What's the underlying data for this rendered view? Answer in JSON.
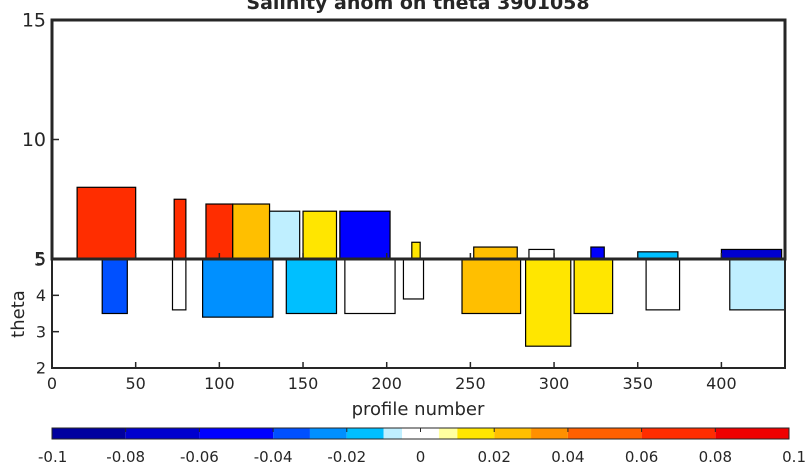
{
  "chart_data": [
    {
      "type": "heatmap",
      "panel": "upper",
      "title": "Salinity anom on theta    3901058",
      "xlim": [
        0,
        438
      ],
      "ylim": [
        5,
        15
      ],
      "yticks": [
        5,
        10,
        15
      ],
      "ytick_labels": [
        "5",
        "10",
        "15"
      ],
      "grid": false,
      "columns": [
        {
          "x": [
            15,
            50
          ],
          "theta": [
            5,
            8.0
          ],
          "dominant_anom": 0.07
        },
        {
          "x": [
            73,
            80
          ],
          "theta": [
            5,
            7.5
          ],
          "dominant_anom": 0.065
        },
        {
          "x": [
            92,
            108
          ],
          "theta": [
            5,
            7.3
          ],
          "dominant_anom": 0.06
        },
        {
          "x": [
            108,
            130
          ],
          "theta": [
            5,
            7.3
          ],
          "dominant_anom": 0.02
        },
        {
          "x": [
            130,
            148
          ],
          "theta": [
            5,
            7.0
          ],
          "dominant_anom": -0.01
        },
        {
          "x": [
            150,
            170
          ],
          "theta": [
            5,
            7.0
          ],
          "dominant_anom": 0.01
        },
        {
          "x": [
            172,
            202
          ],
          "theta": [
            5,
            7.0
          ],
          "dominant_anom": -0.05
        },
        {
          "x": [
            215,
            220
          ],
          "theta": [
            5,
            5.7
          ],
          "dominant_anom": 0.01
        },
        {
          "x": [
            252,
            278
          ],
          "theta": [
            5,
            5.5
          ],
          "dominant_anom": 0.02
        },
        {
          "x": [
            285,
            300
          ],
          "theta": [
            5,
            5.4
          ],
          "dominant_anom": 0.0
        },
        {
          "x": [
            322,
            330
          ],
          "theta": [
            5,
            5.5
          ],
          "dominant_anom": -0.06
        },
        {
          "x": [
            350,
            374
          ],
          "theta": [
            5,
            5.3
          ],
          "dominant_anom": -0.02
        },
        {
          "x": [
            400,
            436
          ],
          "theta": [
            5,
            5.4
          ],
          "dominant_anom": -0.07
        }
      ]
    },
    {
      "type": "heatmap",
      "panel": "lower",
      "xlabel": "profile number",
      "ylabel": "theta",
      "xlim": [
        0,
        438
      ],
      "ylim": [
        2,
        5
      ],
      "xticks": [
        0,
        50,
        100,
        150,
        200,
        250,
        300,
        350,
        400
      ],
      "xtick_labels": [
        "0",
        "50",
        "100",
        "150",
        "200",
        "250",
        "300",
        "350",
        "400"
      ],
      "yticks": [
        2,
        3,
        4,
        5
      ],
      "ytick_labels": [
        "2",
        "3",
        "4",
        "5"
      ],
      "grid": false,
      "columns": [
        {
          "x": [
            30,
            45
          ],
          "theta": [
            3.5,
            5
          ],
          "dominant_anom": -0.04
        },
        {
          "x": [
            72,
            80
          ],
          "theta": [
            3.6,
            5
          ],
          "dominant_anom": 0.0
        },
        {
          "x": [
            90,
            132
          ],
          "theta": [
            3.4,
            5
          ],
          "dominant_anom": -0.03
        },
        {
          "x": [
            140,
            170
          ],
          "theta": [
            3.5,
            5
          ],
          "dominant_anom": -0.02
        },
        {
          "x": [
            175,
            205
          ],
          "theta": [
            3.5,
            5
          ],
          "dominant_anom": 0.0
        },
        {
          "x": [
            210,
            222
          ],
          "theta": [
            3.9,
            5
          ],
          "dominant_anom": 0.0
        },
        {
          "x": [
            245,
            280
          ],
          "theta": [
            3.5,
            5
          ],
          "dominant_anom": 0.02
        },
        {
          "x": [
            283,
            310
          ],
          "theta": [
            2.6,
            5
          ],
          "dominant_anom": 0.015
        },
        {
          "x": [
            312,
            335
          ],
          "theta": [
            3.5,
            5
          ],
          "dominant_anom": 0.01
        },
        {
          "x": [
            355,
            375
          ],
          "theta": [
            3.6,
            5
          ],
          "dominant_anom": 0.0
        },
        {
          "x": [
            405,
            438
          ],
          "theta": [
            3.6,
            5
          ],
          "dominant_anom": -0.01
        }
      ]
    },
    {
      "type": "heatmap",
      "panel": "colorbar",
      "clim": [
        -0.1,
        0.1
      ],
      "ticks": [
        -0.1,
        -0.08,
        -0.06,
        -0.04,
        -0.02,
        0,
        0.02,
        0.04,
        0.06,
        0.08,
        0.1
      ],
      "tick_labels": [
        "-0.1",
        "-0.08",
        "-0.06",
        "-0.04",
        "-0.02",
        "0",
        "0.02",
        "0.04",
        "0.06",
        "0.08",
        "0.1"
      ],
      "levels": [
        -0.1,
        -0.08,
        -0.06,
        -0.04,
        -0.03,
        -0.02,
        -0.01,
        -0.005,
        0,
        0.005,
        0.01,
        0.02,
        0.03,
        0.04,
        0.06,
        0.08,
        0.1
      ],
      "colors": [
        "#00009f",
        "#0000cf",
        "#0000ff",
        "#0050ff",
        "#0090ff",
        "#00bfff",
        "#bfefff",
        "#ffffff",
        "#ffffff",
        "#ffffa0",
        "#ffe600",
        "#ffbf00",
        "#ff9000",
        "#ff6000",
        "#ff2d00",
        "#ef0000"
      ]
    }
  ]
}
